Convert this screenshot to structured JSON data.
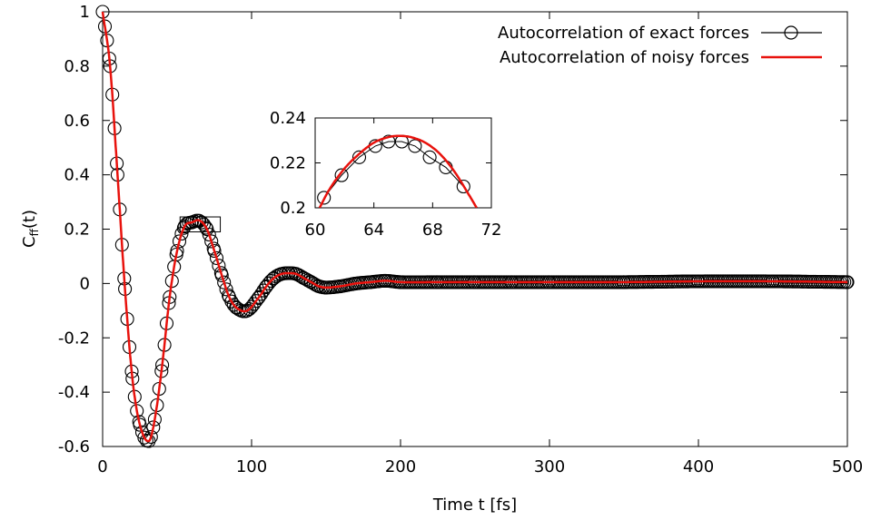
{
  "chart_data": {
    "type": "line",
    "xlabel": "Time t [fs]",
    "ylabel_main": "C",
    "ylabel_sub": "ff",
    "ylabel_tail": "(t)",
    "xlim": [
      0,
      500
    ],
    "ylim": [
      -0.6,
      1.0
    ],
    "x_ticks": [
      0,
      100,
      200,
      300,
      400,
      500
    ],
    "y_ticks": [
      -0.6,
      -0.4,
      -0.2,
      0,
      0.2,
      0.4,
      0.6,
      0.8,
      1
    ],
    "y_tick_labels": [
      "-0.6",
      "-0.4",
      "-0.2",
      "0",
      "0.2",
      "0.4",
      "0.6",
      "0.8",
      "1"
    ],
    "grid": false,
    "legend_position": "top-right",
    "series": [
      {
        "name": "Autocorrelation of exact forces",
        "style": "open-circles-with-line",
        "color": "#000000",
        "x": [
          0,
          5,
          10,
          15,
          20,
          25,
          31,
          35,
          40,
          45,
          50,
          55,
          60,
          65,
          70,
          75,
          80,
          85,
          90,
          97,
          105,
          110,
          115,
          120,
          125,
          130,
          135,
          140,
          145,
          150,
          160,
          170,
          180,
          190,
          200,
          225,
          250,
          275,
          300,
          350,
          400,
          450,
          500
        ],
        "values": [
          1.0,
          0.8,
          0.4,
          -0.02,
          -0.35,
          -0.52,
          -0.58,
          -0.5,
          -0.3,
          -0.05,
          0.12,
          0.21,
          0.225,
          0.23,
          0.2,
          0.12,
          0.03,
          -0.05,
          -0.09,
          -0.1,
          -0.05,
          -0.01,
          0.02,
          0.035,
          0.038,
          0.035,
          0.02,
          0.005,
          -0.01,
          -0.015,
          -0.01,
          0.0,
          0.005,
          0.01,
          0.005,
          0.005,
          0.005,
          0.005,
          0.005,
          0.005,
          0.008,
          0.008,
          0.005
        ]
      },
      {
        "name": "Autocorrelation of noisy forces",
        "style": "line",
        "color": "#e8120d",
        "x": [
          0,
          5,
          10,
          15,
          20,
          25,
          31,
          35,
          40,
          45,
          50,
          55,
          60,
          65,
          70,
          75,
          80,
          85,
          90,
          97,
          105,
          110,
          115,
          120,
          125,
          130,
          135,
          140,
          145,
          150,
          160,
          170,
          180,
          190,
          200,
          225,
          250,
          275,
          300,
          350,
          400,
          450,
          500
        ],
        "values": [
          1.0,
          0.8,
          0.4,
          -0.02,
          -0.35,
          -0.52,
          -0.58,
          -0.5,
          -0.3,
          -0.05,
          0.12,
          0.21,
          0.225,
          0.232,
          0.2,
          0.12,
          0.03,
          -0.05,
          -0.09,
          -0.1,
          -0.05,
          -0.01,
          0.02,
          0.035,
          0.038,
          0.035,
          0.02,
          0.005,
          -0.01,
          -0.015,
          -0.01,
          0.0,
          0.005,
          0.01,
          0.005,
          0.005,
          0.005,
          0.005,
          0.005,
          0.005,
          0.008,
          0.008,
          0.005
        ]
      }
    ],
    "zoom_region": {
      "xlim": [
        52,
        79
      ],
      "ylim": [
        0.19,
        0.245
      ]
    },
    "inset": {
      "xlim": [
        60,
        72
      ],
      "ylim": [
        0.2,
        0.24
      ],
      "x_ticks": [
        60,
        64,
        68,
        72
      ],
      "y_ticks": [
        0.2,
        0.22,
        0.24
      ],
      "y_tick_labels": [
        "0.2",
        "0.22",
        "0.24"
      ],
      "exact_points": {
        "x": [
          60.6,
          61.8,
          63.0,
          64.1,
          65.0,
          65.9,
          66.8,
          67.8,
          68.9,
          70.1
        ],
        "values": [
          0.2045,
          0.2145,
          0.2225,
          0.2275,
          0.2295,
          0.2295,
          0.2275,
          0.2225,
          0.218,
          0.2095
        ]
      },
      "noisy_line": {
        "x": [
          60.3,
          61.0,
          62.0,
          63.0,
          64.0,
          65.0,
          65.7,
          66.5,
          67.5,
          68.5,
          69.5,
          70.5,
          71.0
        ],
        "values": [
          0.2,
          0.2085,
          0.2175,
          0.224,
          0.229,
          0.2315,
          0.232,
          0.2315,
          0.229,
          0.224,
          0.216,
          0.2055,
          0.2
        ]
      }
    }
  }
}
